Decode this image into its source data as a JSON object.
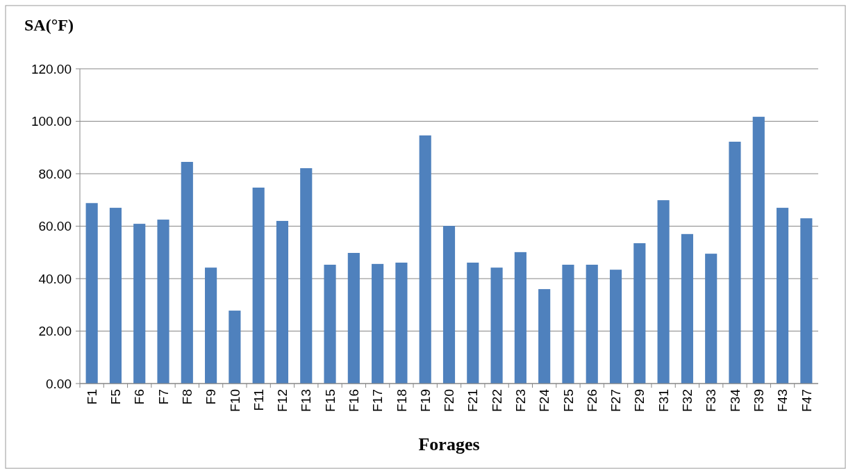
{
  "chart_data": {
    "type": "bar",
    "title": "SA(°F)",
    "xlabel": "Forages",
    "categories": [
      "F1",
      "F5",
      "F6",
      "F7",
      "F8",
      "F9",
      "F10",
      "F11",
      "F12",
      "F13",
      "F15",
      "F16",
      "F17",
      "F18",
      "F19",
      "F20",
      "F21",
      "F22",
      "F23",
      "F24",
      "F25",
      "F26",
      "F27",
      "F29",
      "F31",
      "F32",
      "F33",
      "F34",
      "F39",
      "F43",
      "F47"
    ],
    "values": [
      68.8,
      67.0,
      60.9,
      62.5,
      84.5,
      44.2,
      27.8,
      74.7,
      62.0,
      82.1,
      45.3,
      49.8,
      45.6,
      46.1,
      94.6,
      60.1,
      46.1,
      44.2,
      50.1,
      36.0,
      45.3,
      45.3,
      43.4,
      53.5,
      69.9,
      57.0,
      49.5,
      92.2,
      101.7,
      67.0,
      63.0
    ],
    "color": "#4f81bd",
    "ylim": [
      0,
      120
    ],
    "yticks": [
      {
        "value": 0,
        "label": "0.00"
      },
      {
        "value": 20,
        "label": "20.00"
      },
      {
        "value": 40,
        "label": "40.00"
      },
      {
        "value": 60,
        "label": "60.00"
      },
      {
        "value": 80,
        "label": "80.00"
      },
      {
        "value": 100,
        "label": "100.00"
      },
      {
        "value": 120,
        "label": "120.00"
      }
    ],
    "grid": "y"
  }
}
